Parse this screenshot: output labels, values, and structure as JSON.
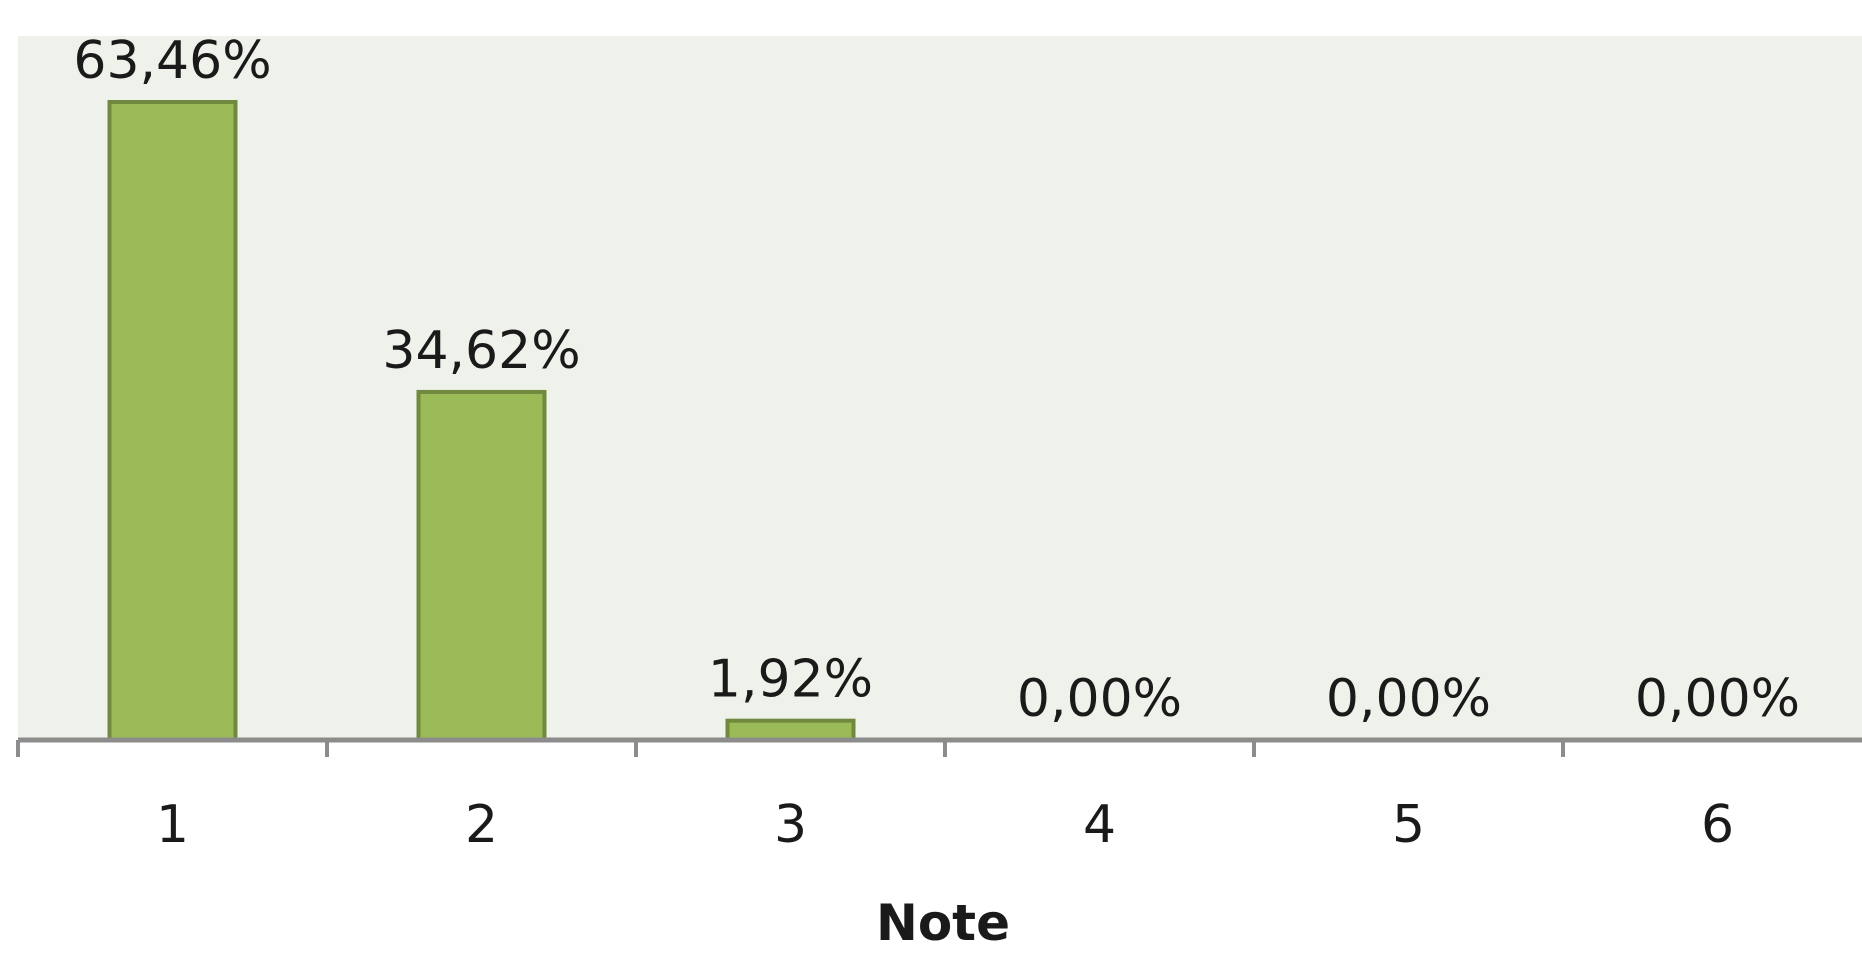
{
  "chart_data": {
    "type": "bar",
    "title": "",
    "xlabel": "Note",
    "ylabel": "",
    "categories": [
      "1",
      "2",
      "3",
      "4",
      "5",
      "6"
    ],
    "values": [
      63.46,
      34.62,
      1.92,
      0.0,
      0.0,
      0.0
    ],
    "data_labels": [
      "63,46%",
      "34,62%",
      "1,92%",
      "0,00%",
      "0,00%",
      "0,00%"
    ],
    "unit": "%",
    "ylim": [
      0,
      70
    ],
    "grid": false,
    "legend": "none",
    "colors": {
      "bar_fill": "#9BBB59",
      "bar_stroke": "#71893F",
      "plot_background": "#EFF2EA",
      "axis": "#8C8C8C"
    }
  }
}
